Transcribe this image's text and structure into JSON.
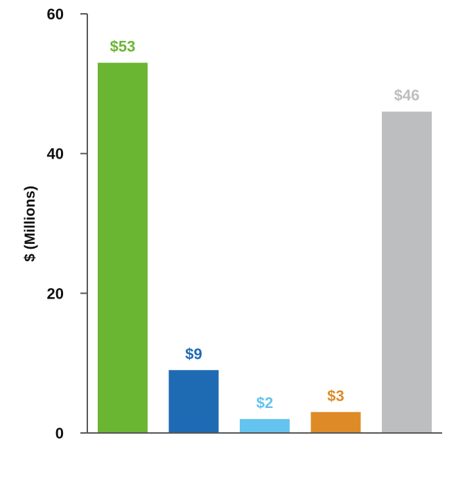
{
  "chart_data": {
    "type": "bar",
    "title": "",
    "xlabel": "",
    "ylabel": "$ (Millions)",
    "ylim": [
      0,
      60
    ],
    "yticks": [
      0,
      20,
      40,
      60
    ],
    "grid": false,
    "categories": [
      "",
      "",
      "",
      "",
      ""
    ],
    "values": [
      53,
      9,
      2,
      3,
      46
    ],
    "data_labels": [
      "$53",
      "$9",
      "$2",
      "$3",
      "$46"
    ],
    "colors": [
      "#6ab633",
      "#1f6bb3",
      "#64c3ef",
      "#de8b27",
      "#bdbec0"
    ]
  }
}
